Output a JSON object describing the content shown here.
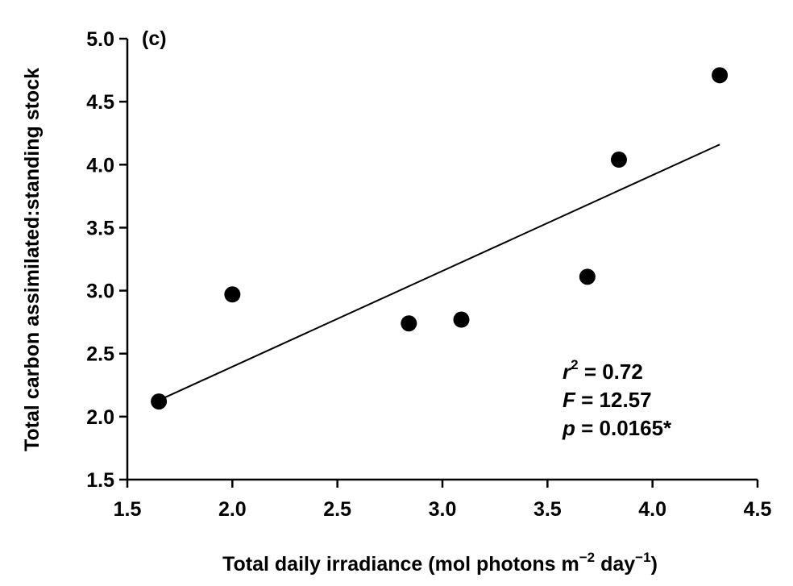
{
  "chart_data": {
    "type": "scatter",
    "panel_label": "(c)",
    "xlabel": {
      "prefix": "Total daily irradiance (mol photons m",
      "exp1": "−2",
      "mid": " day",
      "exp2": "−1",
      "suffix": ")"
    },
    "ylabel": "Total carbon assimilated:standing stock",
    "xlim": [
      1.5,
      4.5
    ],
    "ylim": [
      1.5,
      5.0
    ],
    "x_ticks": [
      {
        "value": 1.5,
        "label": "1.5"
      },
      {
        "value": 2.0,
        "label": "2.0"
      },
      {
        "value": 2.5,
        "label": "2.5"
      },
      {
        "value": 3.0,
        "label": "3.0"
      },
      {
        "value": 3.5,
        "label": "3.5"
      },
      {
        "value": 4.0,
        "label": "4.0"
      },
      {
        "value": 4.5,
        "label": "4.5"
      }
    ],
    "y_ticks": [
      {
        "value": 1.5,
        "label": "1.5"
      },
      {
        "value": 2.0,
        "label": "2.0"
      },
      {
        "value": 2.5,
        "label": "2.5"
      },
      {
        "value": 3.0,
        "label": "3.0"
      },
      {
        "value": 3.5,
        "label": "3.5"
      },
      {
        "value": 4.0,
        "label": "4.0"
      },
      {
        "value": 4.5,
        "label": "4.5"
      },
      {
        "value": 5.0,
        "label": "5.0"
      }
    ],
    "points": [
      {
        "x": 1.65,
        "y": 2.12
      },
      {
        "x": 2.0,
        "y": 2.97
      },
      {
        "x": 2.84,
        "y": 2.74
      },
      {
        "x": 3.09,
        "y": 2.77
      },
      {
        "x": 3.69,
        "y": 3.11
      },
      {
        "x": 3.84,
        "y": 4.04
      },
      {
        "x": 4.32,
        "y": 4.71
      }
    ],
    "regression_line": {
      "x": [
        1.65,
        4.32
      ],
      "y": [
        2.13,
        4.16
      ]
    },
    "marker_color": "#000000",
    "grid": false,
    "stats": {
      "r2": {
        "var": "r",
        "sup": "2",
        "text": " = 0.72"
      },
      "F": {
        "var": "F",
        "text": " = 12.57"
      },
      "p": {
        "var": "p",
        "text": " = 0.0165*"
      }
    }
  }
}
